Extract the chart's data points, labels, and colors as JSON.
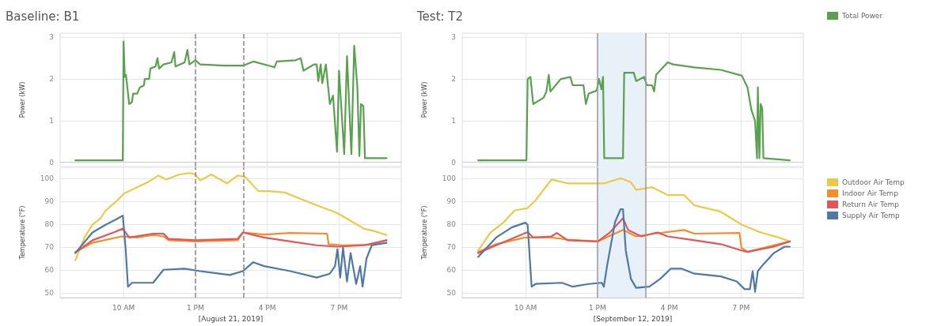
{
  "chart_data": [
    {
      "type": "line",
      "title": "Baseline: B1",
      "ylabel": "Power (kW)",
      "xlim": [
        "2019-08-21T07:21",
        "2019-08-21T21:36"
      ],
      "xticks": [
        {
          "value": "2019-08-21T10:00",
          "label": null
        },
        {
          "value": "2019-08-21T13:00",
          "label": null
        },
        {
          "value": "2019-08-21T16:00",
          "label": null
        },
        {
          "value": "2019-08-21T19:00",
          "label": null
        }
      ],
      "ylim": [
        -0.1,
        3.1
      ],
      "yticks": [
        0,
        1,
        2,
        3
      ],
      "grid": true,
      "tick_labels": "y",
      "ref_lines": [
        {
          "axis": "x",
          "value": "2019-08-21T13:00",
          "color": "#888888",
          "line_style": "dashed"
        },
        {
          "axis": "x",
          "value": "2019-08-21T15:00",
          "color": "#888888",
          "line_style": "dashed"
        }
      ],
      "series": [
        {
          "color": "#59a14f",
          "x": [
            "2019-08-21T07:59",
            "2019-08-21T09:58",
            "2019-08-21T10:00",
            "2019-08-21T10:03",
            "2019-08-21T10:06",
            "2019-08-21T10:14",
            "2019-08-21T10:21",
            "2019-08-21T10:24",
            "2019-08-21T10:34",
            "2019-08-21T10:41",
            "2019-08-21T10:51",
            "2019-08-21T10:53",
            "2019-08-21T11:04",
            "2019-08-21T11:07",
            "2019-08-21T11:20",
            "2019-08-21T11:25",
            "2019-08-21T11:29",
            "2019-08-21T11:40",
            "2019-08-21T12:00",
            "2019-08-21T12:07",
            "2019-08-21T12:10",
            "2019-08-21T12:33",
            "2019-08-21T12:40",
            "2019-08-21T12:45",
            "2019-08-21T13:00",
            "2019-08-21T13:12",
            "2019-08-21T14:12",
            "2019-08-21T14:59",
            "2019-08-21T15:25",
            "2019-08-21T16:12",
            "2019-08-21T16:18",
            "2019-08-21T16:24",
            "2019-08-21T17:11",
            "2019-08-21T17:24",
            "2019-08-21T17:31",
            "2019-08-21T17:57",
            "2019-08-21T18:04",
            "2019-08-21T18:08",
            "2019-08-21T18:14",
            "2019-08-21T18:18",
            "2019-08-21T18:27",
            "2019-08-21T18:37",
            "2019-08-21T18:45",
            "2019-08-21T18:55",
            "2019-08-21T19:00",
            "2019-08-21T19:13",
            "2019-08-21T19:20",
            "2019-08-21T19:31",
            "2019-08-21T19:38",
            "2019-08-21T19:46",
            "2019-08-21T19:51",
            "2019-08-21T19:55",
            "2019-08-21T20:01",
            "2019-08-21T20:05",
            "2019-08-21T20:59"
          ],
          "values": [
            0.05,
            0.05,
            2.9,
            2.05,
            2.1,
            1.4,
            1.45,
            1.65,
            1.65,
            1.8,
            1.85,
            2.0,
            2.0,
            2.25,
            2.3,
            2.5,
            2.25,
            2.35,
            2.4,
            2.65,
            2.3,
            2.4,
            2.7,
            2.35,
            2.45,
            2.35,
            2.32,
            2.32,
            2.42,
            2.3,
            2.28,
            2.42,
            2.45,
            2.5,
            2.2,
            2.35,
            2.35,
            1.95,
            2.35,
            1.9,
            2.35,
            1.4,
            1.6,
            0.25,
            2.2,
            0.2,
            2.55,
            0.2,
            2.8,
            1.8,
            0.15,
            1.4,
            1.35,
            0.1,
            0.1
          ]
        }
      ]
    },
    {
      "type": "line",
      "title": "Test: T2",
      "ylabel": "Power (kW)",
      "xlim": [
        "2019-09-12T07:21",
        "2019-09-12T21:36"
      ],
      "xticks": [
        {
          "value": "2019-09-12T10:00",
          "label": null
        },
        {
          "value": "2019-09-12T13:00",
          "label": null
        },
        {
          "value": "2019-09-12T16:00",
          "label": null
        },
        {
          "value": "2019-09-12T19:00",
          "label": null
        }
      ],
      "ylim": [
        -0.1,
        3.1
      ],
      "yticks": [
        0,
        1,
        2,
        3
      ],
      "grid": true,
      "tick_labels": "y",
      "legend": "right",
      "bands": [
        {
          "axis": "x",
          "from": "2019-09-12T13:00",
          "to": "2019-09-12T15:00",
          "color": "#e8f0f8"
        }
      ],
      "ref_lines": [
        {
          "axis": "x",
          "value": "2019-09-12T13:00",
          "color": "#999999",
          "line_style": "solid"
        },
        {
          "axis": "x",
          "value": "2019-09-12T15:00",
          "color": "#999999",
          "line_style": "solid"
        }
      ],
      "series": [
        {
          "name": "Total Power",
          "color": "#59a14f",
          "x": [
            "2019-09-12T08:01",
            "2019-09-12T10:02",
            "2019-09-12T10:05",
            "2019-09-12T10:12",
            "2019-09-12T10:19",
            "2019-09-12T10:45",
            "2019-09-12T10:52",
            "2019-09-12T10:58",
            "2019-09-12T11:02",
            "2019-09-12T11:28",
            "2019-09-12T11:52",
            "2019-09-12T11:58",
            "2019-09-12T12:25",
            "2019-09-12T12:31",
            "2019-09-12T12:38",
            "2019-09-12T12:58",
            "2019-09-12T13:04",
            "2019-09-12T13:10",
            "2019-09-12T13:14",
            "2019-09-12T13:17",
            "2019-09-12T14:04",
            "2019-09-12T14:07",
            "2019-09-12T14:31",
            "2019-09-12T14:37",
            "2019-09-12T14:57",
            "2019-09-12T15:04",
            "2019-09-12T15:17",
            "2019-09-12T15:22",
            "2019-09-12T15:27",
            "2019-09-12T15:56",
            "2019-09-12T16:10",
            "2019-09-12T17:03",
            "2019-09-12T18:09",
            "2019-09-12T19:02",
            "2019-09-12T19:16",
            "2019-09-12T19:26",
            "2019-09-12T19:35",
            "2019-09-12T19:40",
            "2019-09-12T19:42",
            "2019-09-12T19:46",
            "2019-09-12T19:49",
            "2019-09-12T19:53",
            "2019-09-12T19:56",
            "2019-09-12T21:02"
          ],
          "values": [
            0.05,
            0.05,
            2.0,
            2.05,
            1.4,
            1.55,
            1.7,
            2.1,
            1.7,
            2.0,
            2.05,
            1.85,
            1.85,
            1.4,
            1.65,
            1.72,
            2.0,
            1.75,
            2.05,
            0.1,
            0.1,
            2.15,
            2.15,
            1.95,
            2.05,
            1.85,
            1.85,
            1.7,
            2.1,
            2.4,
            2.35,
            2.28,
            2.22,
            2.08,
            1.8,
            1.25,
            1.0,
            0.1,
            1.8,
            0.1,
            1.4,
            1.3,
            0.1,
            0.05
          ]
        }
      ]
    },
    {
      "type": "line",
      "ylabel": "Temperature (°F)",
      "xlabel": "[August 21, 2019]",
      "xlim": [
        "2019-08-21T07:21",
        "2019-08-21T21:36"
      ],
      "xticks": [
        {
          "value": "2019-08-21T10:00",
          "label": "10 AM"
        },
        {
          "value": "2019-08-21T13:00",
          "label": "1 PM"
        },
        {
          "value": "2019-08-21T16:00",
          "label": "4 PM"
        },
        {
          "value": "2019-08-21T19:00",
          "label": "7 PM"
        }
      ],
      "ylim": [
        48,
        105
      ],
      "yticks": [
        50,
        60,
        70,
        80,
        90,
        100
      ],
      "grid": true,
      "ref_lines": [
        {
          "axis": "x",
          "value": "2019-08-21T13:00",
          "color": "#888888",
          "line_style": "dashed"
        },
        {
          "axis": "x",
          "value": "2019-08-21T15:00",
          "color": "#888888",
          "line_style": "dashed"
        }
      ],
      "series": [
        {
          "color": "#edc948",
          "x": [
            "2019-08-21T07:59",
            "2019-08-21T08:22",
            "2019-08-21T08:42",
            "2019-08-21T09:02",
            "2019-08-21T09:15",
            "2019-08-21T09:41",
            "2019-08-21T10:01",
            "2019-08-21T10:34",
            "2019-08-21T11:01",
            "2019-08-21T11:27",
            "2019-08-21T11:47",
            "2019-08-21T12:20",
            "2019-08-21T12:47",
            "2019-08-21T13:00",
            "2019-08-21T13:12",
            "2019-08-21T13:40",
            "2019-08-21T14:19",
            "2019-08-21T14:46",
            "2019-08-21T15:05",
            "2019-08-21T15:38",
            "2019-08-21T16:05",
            "2019-08-21T16:44",
            "2019-08-21T17:24",
            "2019-08-21T18:04",
            "2019-08-21T18:56",
            "2019-08-21T19:29",
            "2019-08-21T20:02",
            "2019-08-21T20:29",
            "2019-08-21T20:59"
          ],
          "values": [
            64.3,
            74.3,
            79.9,
            82.7,
            86.1,
            90,
            93.5,
            96.3,
            98.5,
            101.4,
            99.7,
            101.9,
            102.5,
            101.9,
            99.3,
            101.9,
            98,
            101.4,
            100.8,
            94.6,
            94.6,
            94,
            91.2,
            88.4,
            85,
            81.6,
            78.2,
            77.1,
            75.4
          ]
        },
        {
          "color": "#f28e2b",
          "x": [
            "2019-08-21T07:59",
            "2019-08-21T08:42",
            "2019-08-21T09:55",
            "2019-08-21T10:34",
            "2019-08-21T11:14",
            "2019-08-21T11:40",
            "2019-08-21T11:53",
            "2019-08-21T13:00",
            "2019-08-21T14:46",
            "2019-08-21T14:59",
            "2019-08-21T15:52",
            "2019-08-21T16:58",
            "2019-08-21T18:30",
            "2019-08-21T18:34",
            "2019-08-21T19:10",
            "2019-08-21T20:16",
            "2019-08-21T20:59"
          ],
          "values": [
            68,
            72,
            74.8,
            74.3,
            75.4,
            74.8,
            73.1,
            72.6,
            73.1,
            76.5,
            75.6,
            76.3,
            76,
            71.4,
            70.9,
            71.1,
            73.1
          ]
        },
        {
          "color": "#e15759",
          "x": [
            "2019-08-21T07:59",
            "2019-08-21T08:42",
            "2019-08-21T09:35",
            "2019-08-21T09:58",
            "2019-08-21T10:14",
            "2019-08-21T11:14",
            "2019-08-21T11:40",
            "2019-08-21T11:53",
            "2019-08-21T13:00",
            "2019-08-21T14:46",
            "2019-08-21T14:59",
            "2019-08-21T15:52",
            "2019-08-21T16:58",
            "2019-08-21T18:04",
            "2019-08-21T18:56",
            "2019-08-21T20:02",
            "2019-08-21T20:59"
          ],
          "values": [
            67.7,
            73.1,
            76.5,
            78.2,
            74.3,
            76,
            76,
            73.7,
            73.1,
            73.7,
            76.5,
            74.3,
            72.6,
            70.9,
            70.3,
            70.9,
            73.1
          ]
        },
        {
          "color": "#4e79a7",
          "x": [
            "2019-08-21T07:59",
            "2019-08-21T08:42",
            "2019-08-21T09:15",
            "2019-08-21T09:41",
            "2019-08-21T09:58",
            "2019-08-21T10:05",
            "2019-08-21T10:11",
            "2019-08-21T10:21",
            "2019-08-21T11:14",
            "2019-08-21T11:40",
            "2019-08-21T12:33",
            "2019-08-21T13:12",
            "2019-08-21T14:26",
            "2019-08-21T14:59",
            "2019-08-21T15:25",
            "2019-08-21T15:52",
            "2019-08-21T16:58",
            "2019-08-21T18:04",
            "2019-08-21T18:37",
            "2019-08-21T18:50",
            "2019-08-21T18:56",
            "2019-08-21T19:03",
            "2019-08-21T19:10",
            "2019-08-21T19:20",
            "2019-08-21T19:29",
            "2019-08-21T19:43",
            "2019-08-21T19:53",
            "2019-08-21T19:59",
            "2019-08-21T20:09",
            "2019-08-21T20:22",
            "2019-08-21T20:59"
          ],
          "values": [
            67.5,
            76.5,
            79.9,
            82.2,
            83.9,
            69.8,
            52.8,
            54.5,
            54.5,
            60.2,
            60.7,
            59.6,
            57.9,
            59.6,
            63.5,
            61.8,
            59.6,
            56.8,
            58.5,
            61.8,
            69.2,
            56.8,
            69.8,
            55.1,
            67.5,
            54,
            61.8,
            52.8,
            65.2,
            70.9,
            72
          ]
        }
      ]
    },
    {
      "type": "line",
      "ylabel": "Temperature (°F)",
      "xlabel": "[September 12, 2019]",
      "xlim": [
        "2019-09-12T07:21",
        "2019-09-12T21:36"
      ],
      "xticks": [
        {
          "value": "2019-09-12T10:00",
          "label": "10 AM"
        },
        {
          "value": "2019-09-12T13:00",
          "label": "1 PM"
        },
        {
          "value": "2019-09-12T16:00",
          "label": "4 PM"
        },
        {
          "value": "2019-09-12T19:00",
          "label": "7 PM"
        }
      ],
      "ylim": [
        48,
        105
      ],
      "yticks": [
        50,
        60,
        70,
        80,
        90,
        100
      ],
      "grid": true,
      "legend": "right",
      "bands": [
        {
          "axis": "x",
          "from": "2019-09-12T13:00",
          "to": "2019-09-12T15:00",
          "color": "#e8f0f8"
        }
      ],
      "ref_lines": [
        {
          "axis": "x",
          "value": "2019-09-12T13:00",
          "color": "#999999",
          "line_style": "solid"
        },
        {
          "axis": "x",
          "value": "2019-09-12T15:00",
          "color": "#999999",
          "line_style": "solid"
        }
      ],
      "series": [
        {
          "name": "Outdoor Air Temp",
          "color": "#edc948",
          "x": [
            "2019-09-12T08:01",
            "2019-09-12T08:32",
            "2019-09-12T09:05",
            "2019-09-12T09:32",
            "2019-09-12T10:05",
            "2019-09-12T10:25",
            "2019-09-12T10:52",
            "2019-09-12T11:05",
            "2019-09-12T11:45",
            "2019-09-12T12:38",
            "2019-09-12T13:17",
            "2019-09-12T13:58",
            "2019-09-12T14:24",
            "2019-09-12T14:37",
            "2019-09-12T15:17",
            "2019-09-12T15:56",
            "2019-09-12T16:37",
            "2019-09-12T17:03",
            "2019-09-12T18:09",
            "2019-09-12T19:02",
            "2019-09-12T19:49",
            "2019-09-12T20:35",
            "2019-09-12T21:02"
          ],
          "values": [
            68.6,
            76.5,
            81,
            86.1,
            87.2,
            90.6,
            96.8,
            99.7,
            98,
            98,
            98,
            100.2,
            98.5,
            95.1,
            96.3,
            92.9,
            92.9,
            88.4,
            85.6,
            79.9,
            76.5,
            74.3,
            72.6
          ]
        },
        {
          "name": "Indoor Air Temp",
          "color": "#f28e2b",
          "x": [
            "2019-09-12T08:01",
            "2019-09-12T08:46",
            "2019-09-12T09:59",
            "2019-09-12T11:05",
            "2019-09-12T11:45",
            "2019-09-12T13:01",
            "2019-09-12T14:04",
            "2019-09-12T14:37",
            "2019-09-12T15:23",
            "2019-09-12T16:37",
            "2019-09-12T17:03",
            "2019-09-12T18:56",
            "2019-09-12T19:01",
            "2019-09-12T19:16",
            "2019-09-12T21:02"
          ],
          "values": [
            68,
            71.4,
            74.3,
            74.3,
            73.4,
            72.6,
            77.6,
            74.8,
            76,
            77.6,
            76,
            76.3,
            69.8,
            68,
            72.6
          ]
        },
        {
          "name": "Return Air Temp",
          "color": "#e15759",
          "x": [
            "2019-09-12T08:01",
            "2019-09-12T08:46",
            "2019-09-12T09:39",
            "2019-09-12T10:05",
            "2019-09-12T10:19",
            "2019-09-12T11:05",
            "2019-09-12T11:18",
            "2019-09-12T11:45",
            "2019-09-12T13:01",
            "2019-09-12T13:31",
            "2019-09-12T14:04",
            "2019-09-12T14:17",
            "2019-09-12T14:50",
            "2019-09-12T15:30",
            "2019-09-12T15:56",
            "2019-09-12T17:03",
            "2019-09-12T18:09",
            "2019-09-12T19:02",
            "2019-09-12T19:16",
            "2019-09-12T20:22",
            "2019-09-12T21:02"
          ],
          "values": [
            67.5,
            70.9,
            74.8,
            76.7,
            74.3,
            74.8,
            76.3,
            73.1,
            72.6,
            76.5,
            82.7,
            77.6,
            74.8,
            76.5,
            74.8,
            73.1,
            71.4,
            68.6,
            68,
            70.3,
            72.6
          ]
        },
        {
          "name": "Supply Air Temp",
          "color": "#4e79a7",
          "x": [
            "2019-09-12T08:01",
            "2019-09-12T08:46",
            "2019-09-12T09:26",
            "2019-09-12T09:59",
            "2019-09-12T10:05",
            "2019-09-12T10:15",
            "2019-09-12T10:25",
            "2019-09-12T11:31",
            "2019-09-12T11:58",
            "2019-09-12T12:38",
            "2019-09-12T13:11",
            "2019-09-12T13:16",
            "2019-09-12T13:24",
            "2019-09-12T13:44",
            "2019-09-12T13:58",
            "2019-09-12T14:04",
            "2019-09-12T14:11",
            "2019-09-12T14:24",
            "2019-09-12T14:37",
            "2019-09-12T15:10",
            "2019-09-12T15:37",
            "2019-09-12T16:04",
            "2019-09-12T16:30",
            "2019-09-12T17:03",
            "2019-09-12T18:09",
            "2019-09-12T18:49",
            "2019-09-12T19:09",
            "2019-09-12T19:22",
            "2019-09-12T19:29",
            "2019-09-12T19:35",
            "2019-09-12T19:42",
            "2019-09-12T19:55",
            "2019-09-12T20:22",
            "2019-09-12T20:49",
            "2019-09-12T21:02"
          ],
          "values": [
            65.8,
            74.3,
            78.8,
            80.8,
            79.9,
            52.8,
            54,
            54.5,
            52.8,
            54,
            54.5,
            52.8,
            61.8,
            81,
            86.7,
            86.7,
            68.6,
            56.2,
            52.3,
            52.8,
            56.2,
            60.7,
            60.7,
            58.5,
            57.3,
            55.1,
            51.7,
            51.7,
            59.6,
            50.6,
            59.6,
            62.4,
            67.5,
            70.3,
            70.3
          ]
        }
      ]
    }
  ]
}
